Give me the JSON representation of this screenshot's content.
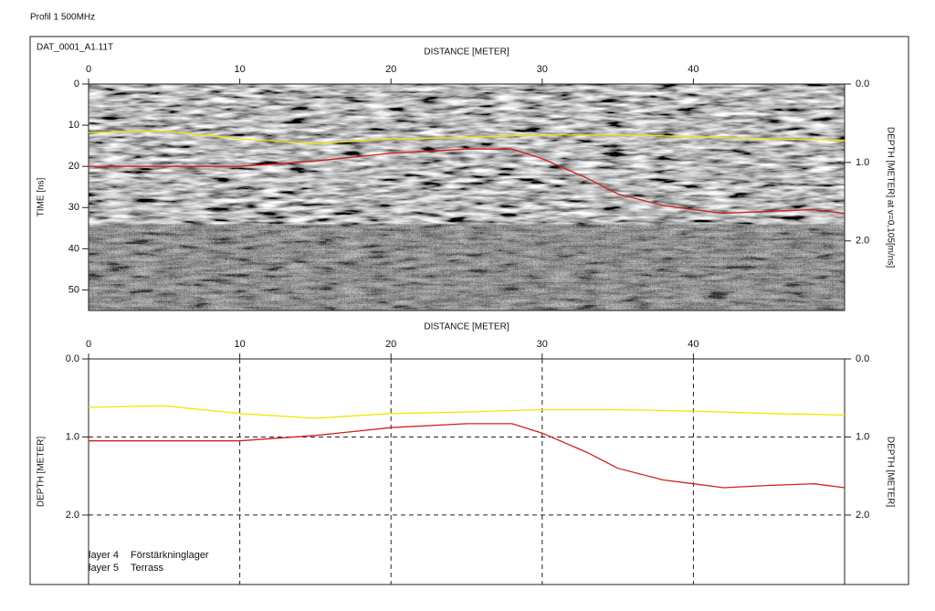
{
  "header": {
    "title": "Profil 1 500MHz"
  },
  "chart_data": [
    {
      "type": "line",
      "title": "DAT_0001_A1.11T",
      "x_label": "DISTANCE [METER]",
      "y_label": "TIME [ns]",
      "y2_label": "DEPTH [METER] at v=0,105[m/ns]",
      "background": "radargram",
      "y_inverted": true,
      "xlim": [
        0,
        50
      ],
      "xticks": [
        0,
        10,
        20,
        30,
        40
      ],
      "ylim": [
        0,
        55
      ],
      "yticks": [
        0,
        10,
        20,
        30,
        40,
        50
      ],
      "y2lim": [
        0,
        2.8875
      ],
      "y2ticks": [
        {
          "value": 0,
          "label": "0.0"
        },
        {
          "value": 1,
          "label": "1.0"
        },
        {
          "value": 2,
          "label": "2.0"
        }
      ],
      "x": [
        0,
        5,
        10,
        15,
        20,
        25,
        28,
        30,
        33,
        35,
        38,
        40,
        42,
        45,
        48,
        50
      ],
      "series": [
        {
          "color": "#f2e600",
          "values": [
            11.8,
            11.4,
            13.3,
            14.5,
            13.3,
            13.0,
            12.6,
            12.4,
            12.4,
            12.4,
            12.6,
            12.8,
            13.0,
            13.3,
            13.5,
            13.7
          ]
        },
        {
          "color": "#d42020",
          "values": [
            20.0,
            20.0,
            20.0,
            18.7,
            16.8,
            15.8,
            15.8,
            18.1,
            22.9,
            26.7,
            29.5,
            30.5,
            31.4,
            30.9,
            30.5,
            31.4
          ]
        }
      ]
    },
    {
      "type": "line",
      "x_label": "DISTANCE [METER]",
      "y_label": "DEPTH [METER]",
      "y2_label": "DEPTH [METER]",
      "y_inverted": true,
      "grid": true,
      "grid_style": "dashed",
      "legend": "lower left",
      "xlim": [
        0,
        50
      ],
      "xticks": [
        0,
        10,
        20,
        30,
        40
      ],
      "ylim": [
        0,
        2.89
      ],
      "yticks": [
        {
          "value": 0,
          "label": "0.0"
        },
        {
          "value": 1,
          "label": "1.0"
        },
        {
          "value": 2,
          "label": "2.0"
        }
      ],
      "y2lim": [
        0,
        2.89
      ],
      "y2ticks": [
        {
          "value": 0,
          "label": "0.0"
        },
        {
          "value": 1,
          "label": "1.0"
        },
        {
          "value": 2,
          "label": "2.0"
        }
      ],
      "x": [
        0,
        5,
        10,
        15,
        20,
        25,
        28,
        30,
        33,
        35,
        38,
        40,
        42,
        45,
        48,
        50
      ],
      "series": [
        {
          "name": "layer 4",
          "description": "Förstärkninglager",
          "color": "#f2e600",
          "values": [
            0.62,
            0.6,
            0.7,
            0.76,
            0.7,
            0.68,
            0.66,
            0.65,
            0.65,
            0.65,
            0.66,
            0.67,
            0.68,
            0.7,
            0.71,
            0.72
          ]
        },
        {
          "name": "layer 5",
          "description": "Terrass",
          "color": "#d42020",
          "values": [
            1.05,
            1.05,
            1.05,
            0.98,
            0.88,
            0.83,
            0.83,
            0.95,
            1.2,
            1.4,
            1.55,
            1.6,
            1.65,
            1.62,
            1.6,
            1.65
          ]
        }
      ]
    }
  ]
}
